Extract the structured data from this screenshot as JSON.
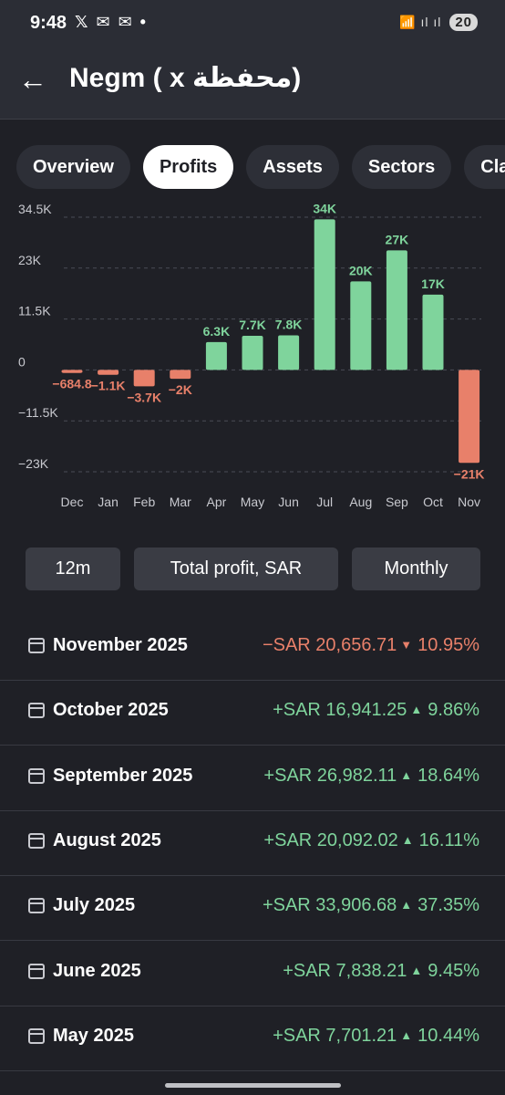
{
  "status_bar": {
    "time": "9:48",
    "notification_icons": "𝕏 ✉ ✉ •",
    "signal_icons": "📶 ıl ıl",
    "battery": "20"
  },
  "header": {
    "title": "Negm ( x محفظة)"
  },
  "tabs": [
    {
      "label": "Overview",
      "active": false
    },
    {
      "label": "Profits",
      "active": true
    },
    {
      "label": "Assets",
      "active": false
    },
    {
      "label": "Sectors",
      "active": false
    },
    {
      "label": "Cla",
      "active": false
    }
  ],
  "chart_data": {
    "type": "bar",
    "categories": [
      "Dec",
      "Jan",
      "Feb",
      "Mar",
      "Apr",
      "May",
      "Jun",
      "Jul",
      "Aug",
      "Sep",
      "Oct",
      "Nov"
    ],
    "values": [
      -684.8,
      -1100,
      -3700,
      -2000,
      6300,
      7700,
      7800,
      34000,
      20000,
      27000,
      17000,
      -21000
    ],
    "labels": [
      "−684.8",
      "−1.1K",
      "−3.7K",
      "−2K",
      "6.3K",
      "7.7K",
      "7.8K",
      "34K",
      "20K",
      "27K",
      "17K",
      "−21K"
    ],
    "y_ticks": [
      {
        "value": 34500,
        "label": "34.5K"
      },
      {
        "value": 23000,
        "label": "23K"
      },
      {
        "value": 11500,
        "label": "11.5K"
      },
      {
        "value": 0,
        "label": "0"
      },
      {
        "value": -11500,
        "label": "−11.5K"
      },
      {
        "value": -23000,
        "label": "−23K"
      }
    ],
    "ylim": [
      -23000,
      34500
    ],
    "grid": true,
    "positive_color": "#7fd49c",
    "negative_color": "#e8806a"
  },
  "filters": {
    "period": "12m",
    "metric": "Total profit,  SAR",
    "interval": "Monthly"
  },
  "rows": [
    {
      "month": "November 2025",
      "amount": "−SAR 20,656.71",
      "direction": "down",
      "arrow": "▼",
      "percent": "10.95%"
    },
    {
      "month": "October 2025",
      "amount": "+SAR 16,941.25",
      "direction": "up",
      "arrow": "▲",
      "percent": "9.86%"
    },
    {
      "month": "September 2025",
      "amount": "+SAR 26,982.11",
      "direction": "up",
      "arrow": "▲",
      "percent": "18.64%"
    },
    {
      "month": "August 2025",
      "amount": "+SAR 20,092.02",
      "direction": "up",
      "arrow": "▲",
      "percent": "16.11%"
    },
    {
      "month": "July 2025",
      "amount": "+SAR 33,906.68",
      "direction": "up",
      "arrow": "▲",
      "percent": "37.35%"
    },
    {
      "month": "June 2025",
      "amount": "+SAR 7,838.21",
      "direction": "up",
      "arrow": "▲",
      "percent": "9.45%"
    },
    {
      "month": "May 2025",
      "amount": "+SAR 7,701.21",
      "direction": "up",
      "arrow": "▲",
      "percent": "10.44%"
    }
  ]
}
